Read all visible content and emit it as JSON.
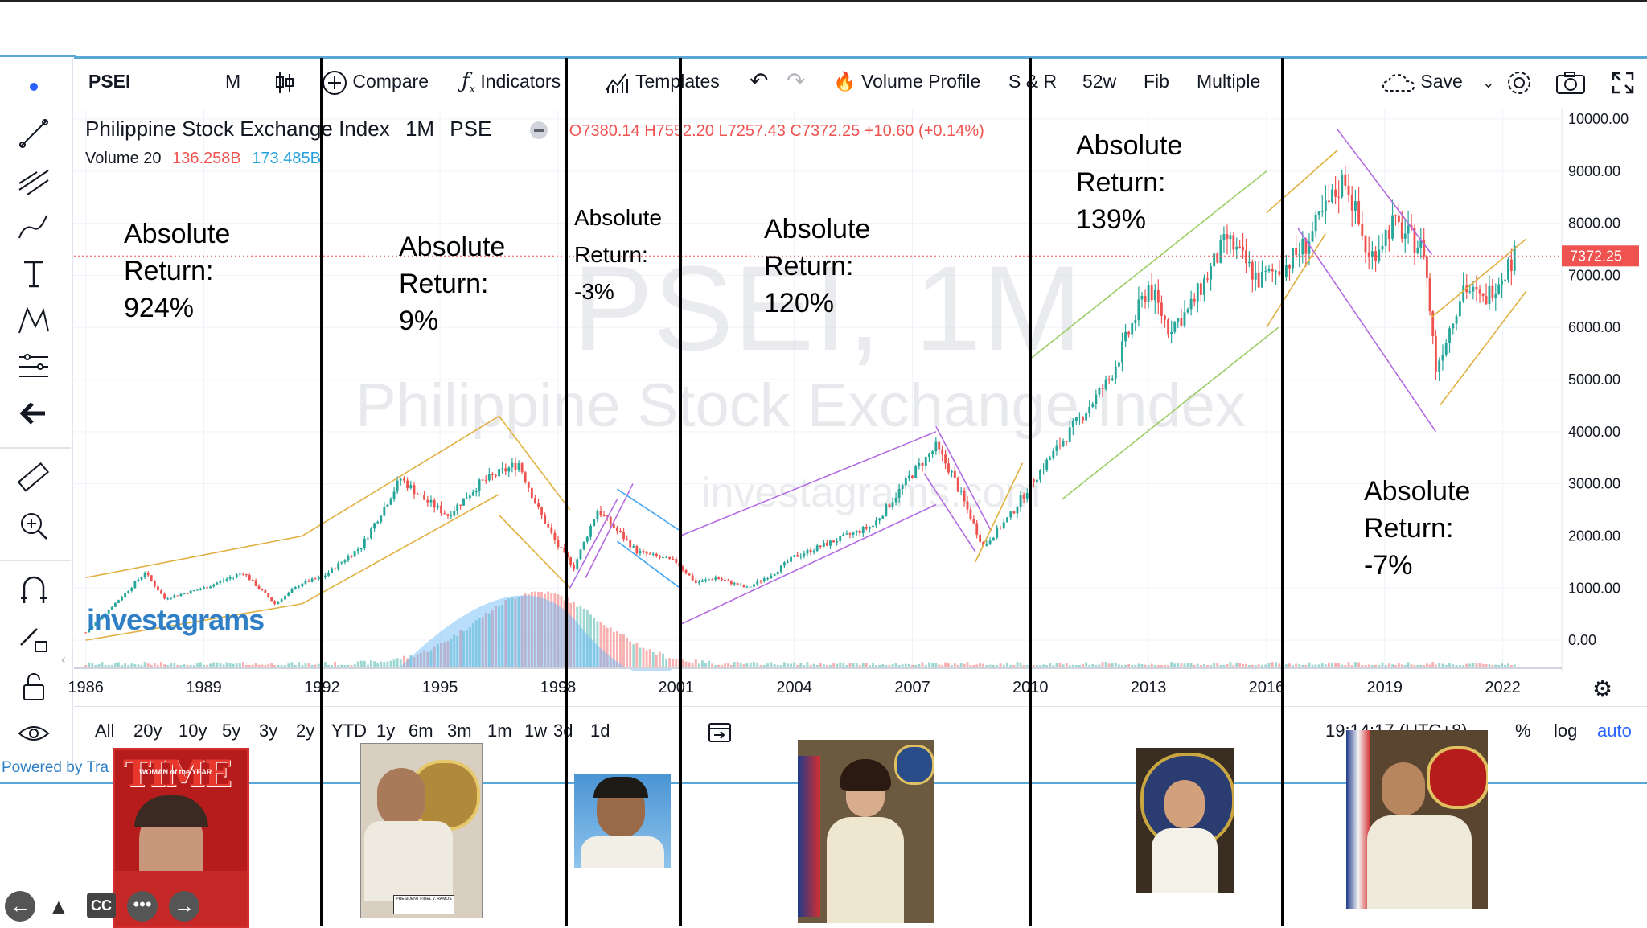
{
  "toolbar": {
    "symbol": "PSEI",
    "interval": "M",
    "compare": "Compare",
    "indicators": "Indicators",
    "templates": "Templates",
    "volume_profile": "Volume Profile",
    "sr": "S & R",
    "w52": "52w",
    "fib": "Fib",
    "multiple": "Multiple",
    "save": "Save"
  },
  "legend": {
    "title": "Philippine Stock Exchange Index",
    "interval": "1M",
    "exchange": "PSE",
    "ohlc": "O7380.14  H7552.20  L7257.43  C7372.25  +10.60 (+0.14%)",
    "volume_label": "Volume 20",
    "volume_val1": "136.258B",
    "volume_val2": "173.485B"
  },
  "watermark": {
    "big": "PSEI, 1M",
    "name": "Philippine Stock Exchange Index",
    "site": "investagrams.com",
    "logo": "investagrams"
  },
  "price_label": "7372.25",
  "bottom_bar": {
    "ranges": [
      "All",
      "20y",
      "10y",
      "5y",
      "3y",
      "2y",
      "YTD",
      "1y",
      "6m",
      "3m",
      "1m",
      "1w",
      "3d",
      "1d"
    ],
    "time": "19:14:17 (UTC+8)",
    "percent": "%",
    "log": "log",
    "auto": "auto"
  },
  "powered_by": "Powered by Tra",
  "annotations": [
    {
      "text": "Absolute\nReturn:\n924%"
    },
    {
      "text": "Absolute\nReturn:\n9%"
    },
    {
      "text": "Absolute\nReturn:\n-3%"
    },
    {
      "text": "Absolute\nReturn:\n120%"
    },
    {
      "text": "Absolute\nReturn:\n139%"
    },
    {
      "text": "Absolute\nReturn:\n-7%"
    }
  ],
  "photos": {
    "time_cover": "TIME",
    "time_sub": "WOMAN of the YEAR",
    "ramos_caption": "PRESIDENT FIDEL V. RAMOS"
  },
  "colors": {
    "up": "#26a69a",
    "down": "#ef5350",
    "channel_gold": "#e0b040",
    "channel_purple": "#b36ae2",
    "axis_text": "#131722",
    "price_tag": "#ef5350",
    "accent_blue": "#2962ff"
  },
  "chart_data": {
    "type": "candlestick",
    "title": "Philippine Stock Exchange Index, 1M, PSE",
    "x_ticks": [
      "1986",
      "1989",
      "1992",
      "1995",
      "1998",
      "2001",
      "2004",
      "2007",
      "2010",
      "2013",
      "2016",
      "2019",
      "2022"
    ],
    "y_ticks": [
      "10000.00",
      "9000.00",
      "8000.00",
      "7000.00",
      "6000.00",
      "5000.00",
      "4000.00",
      "3000.00",
      "2000.00",
      "1000.00",
      "0.00"
    ],
    "ylim": [
      -600,
      10200
    ],
    "xlim": [
      1985.7,
      2023.5
    ],
    "series": [
      {
        "name": "PSEI",
        "points": [
          [
            1986.0,
            150
          ],
          [
            1987.0,
            900
          ],
          [
            1987.5,
            1300
          ],
          [
            1988.0,
            800
          ],
          [
            1989.0,
            1000
          ],
          [
            1990.0,
            1300
          ],
          [
            1990.8,
            700
          ],
          [
            1991.5,
            1100
          ],
          [
            1992.0,
            1200
          ],
          [
            1993.0,
            1800
          ],
          [
            1994.0,
            3100
          ],
          [
            1994.6,
            2700
          ],
          [
            1995.2,
            2400
          ],
          [
            1996.0,
            3000
          ],
          [
            1997.0,
            3400
          ],
          [
            1997.5,
            2500
          ],
          [
            1998.0,
            1800
          ],
          [
            1998.4,
            1400
          ],
          [
            1999.0,
            2500
          ],
          [
            1999.5,
            2100
          ],
          [
            2000.0,
            1700
          ],
          [
            2001.0,
            1500
          ],
          [
            2001.5,
            1100
          ],
          [
            2002.0,
            1200
          ],
          [
            2002.8,
            1000
          ],
          [
            2003.5,
            1300
          ],
          [
            2004.0,
            1600
          ],
          [
            2005.0,
            1900
          ],
          [
            2006.0,
            2200
          ],
          [
            2007.0,
            3200
          ],
          [
            2007.6,
            3700
          ],
          [
            2008.0,
            3200
          ],
          [
            2008.8,
            1800
          ],
          [
            2009.5,
            2400
          ],
          [
            2010.0,
            3000
          ],
          [
            2011.0,
            4000
          ],
          [
            2012.0,
            5000
          ],
          [
            2013.0,
            6800
          ],
          [
            2013.5,
            6000
          ],
          [
            2014.0,
            6300
          ],
          [
            2015.0,
            7700
          ],
          [
            2015.8,
            6900
          ],
          [
            2016.5,
            7200
          ],
          [
            2017.0,
            7600
          ],
          [
            2018.0,
            8900
          ],
          [
            2018.6,
            7300
          ],
          [
            2019.2,
            8000
          ],
          [
            2020.0,
            7500
          ],
          [
            2020.3,
            5200
          ],
          [
            2021.0,
            6800
          ],
          [
            2021.5,
            6500
          ],
          [
            2022.3,
            7372.25
          ]
        ]
      },
      {
        "name": "Volume 20",
        "values_label": [
          "136.258B",
          "173.485B"
        ]
      }
    ],
    "period_boundaries": [
      1992.0,
      1998.2,
      2001.1,
      2010.0,
      2016.4
    ],
    "legend_position": "top-left",
    "grid": true
  }
}
